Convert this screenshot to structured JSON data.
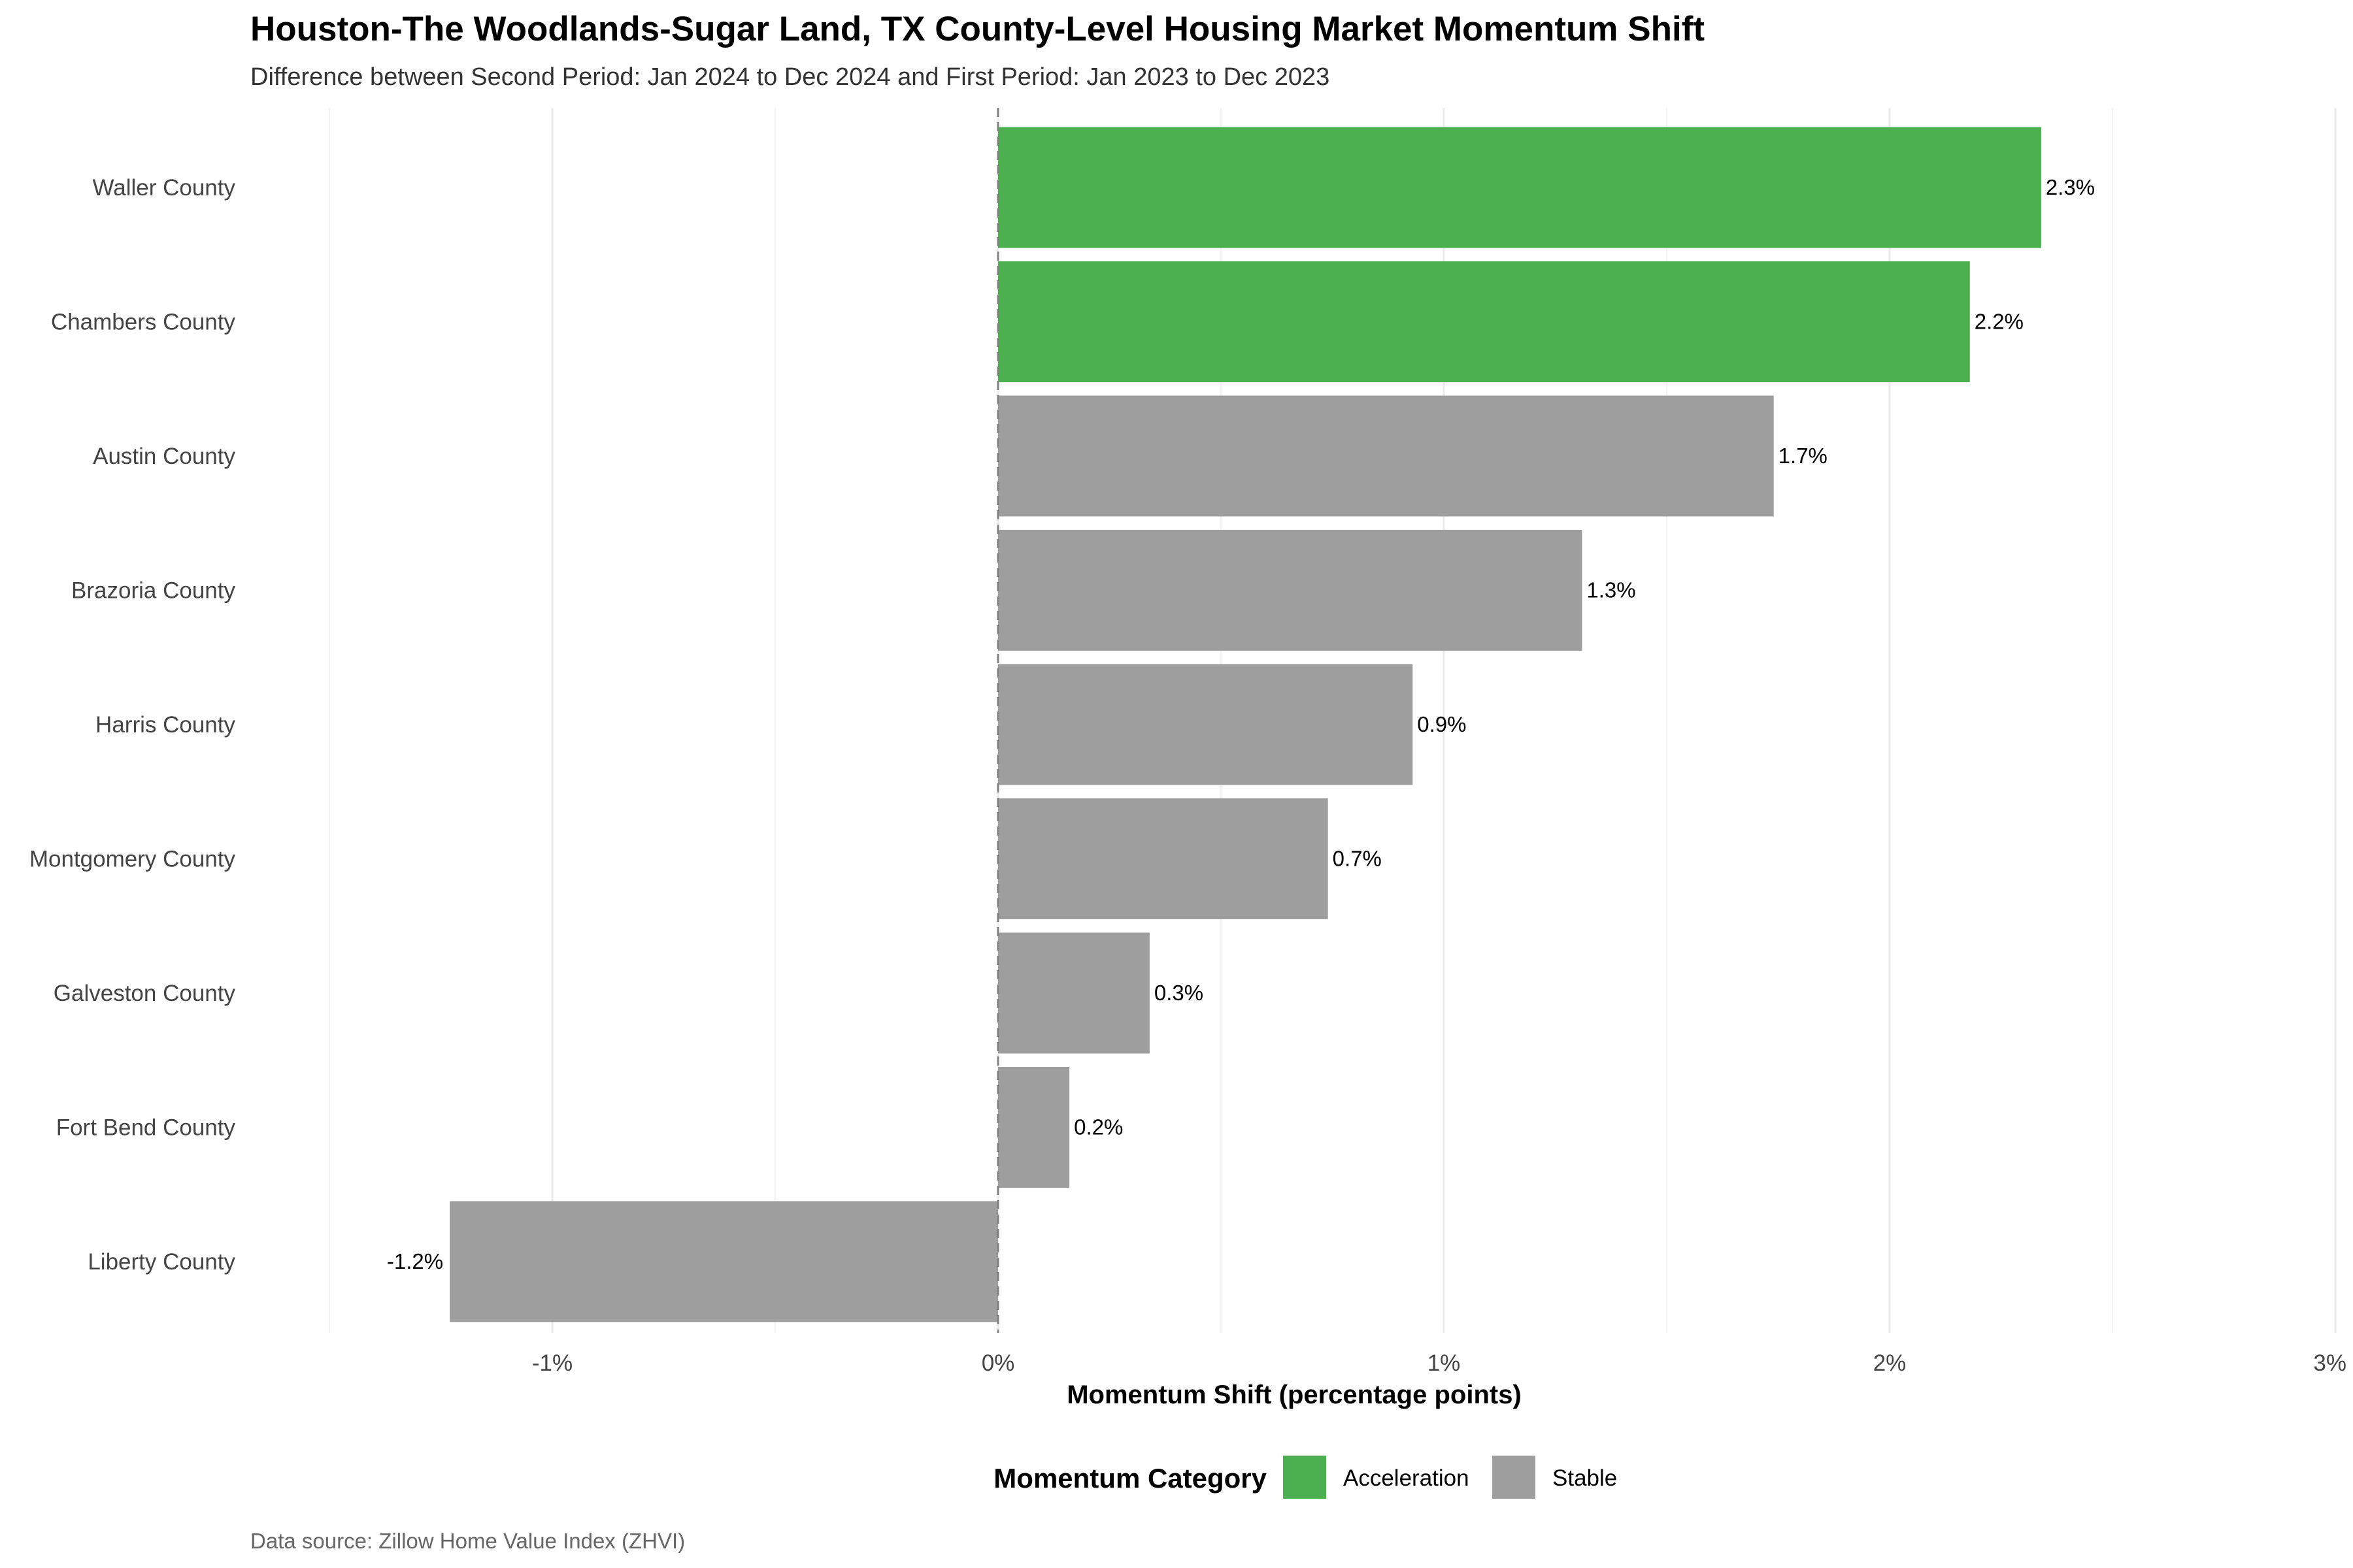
{
  "chart_data": {
    "type": "bar",
    "orientation": "horizontal",
    "title": "Houston-The Woodlands-Sugar Land, TX County-Level Housing Market Momentum Shift",
    "subtitle": "Difference between Second Period: Jan 2024 to Dec 2024 and First Period: Jan 2023 to Dec 2023",
    "xlabel": "Momentum Shift (percentage points)",
    "ylabel": "",
    "xlim": [
      -1.5,
      3.0
    ],
    "x_ticks": [
      -1,
      0,
      1,
      2,
      3
    ],
    "x_tick_labels": [
      "-1%",
      "0%",
      "1%",
      "2%",
      "3%"
    ],
    "grid": true,
    "zero_reference_line": "dashed",
    "categories": [
      "Waller County",
      "Chambers County",
      "Austin County",
      "Brazoria County",
      "Harris County",
      "Montgomery County",
      "Galveston County",
      "Fort Bend County",
      "Liberty County"
    ],
    "values": [
      2.34,
      2.18,
      1.74,
      1.31,
      0.93,
      0.74,
      0.34,
      0.16,
      -1.23
    ],
    "value_labels": [
      "2.3%",
      "2.2%",
      "1.7%",
      "1.3%",
      "0.9%",
      "0.7%",
      "0.3%",
      "0.2%",
      "-1.2%"
    ],
    "bar_categories": [
      "Acceleration",
      "Acceleration",
      "Stable",
      "Stable",
      "Stable",
      "Stable",
      "Stable",
      "Stable",
      "Stable"
    ],
    "legend": {
      "title": "Momentum Category",
      "placement": "bottom",
      "entries": [
        {
          "label": "Acceleration",
          "color": "#4caf50"
        },
        {
          "label": "Stable",
          "color": "#9e9e9e"
        }
      ]
    },
    "caption": "Data source: Zillow Home Value Index (ZHVI)"
  }
}
